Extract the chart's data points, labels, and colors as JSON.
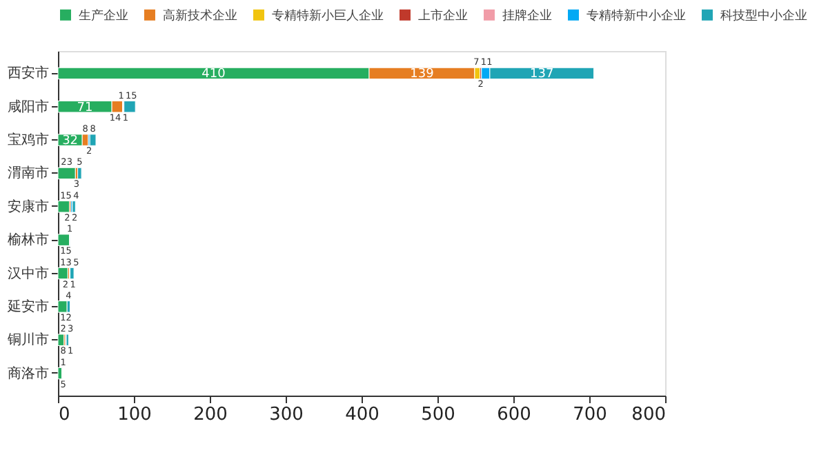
{
  "chart_data": {
    "type": "bar",
    "orientation": "horizontal",
    "stacked": true,
    "data_labels": true,
    "legend": "top",
    "grid": false,
    "categories": [
      "西安市",
      "咸阳市",
      "宝鸡市",
      "渭南市",
      "安康市",
      "榆林市",
      "汉中市",
      "延安市",
      "铜川市",
      "商洛市"
    ],
    "xlim": [
      0,
      800
    ],
    "xticks": [
      0,
      100,
      200,
      300,
      400,
      500,
      600,
      700,
      800
    ],
    "series": [
      {
        "name": "生产企业",
        "color": "#27ae60",
        "values": [
          410,
          71,
          32,
          23,
          15,
          15,
          13,
          12,
          8,
          5
        ]
      },
      {
        "name": "高新技术企业",
        "color": "#e67e22",
        "values": [
          139,
          14,
          8,
          3,
          2,
          null,
          2,
          null,
          2,
          null
        ]
      },
      {
        "name": "专精特新小巨人企业",
        "color": "#f1c40f",
        "values": [
          7,
          1,
          null,
          null,
          null,
          null,
          null,
          null,
          null,
          null
        ]
      },
      {
        "name": "上市企业",
        "color": "#c0392b",
        "values": [
          2,
          null,
          null,
          null,
          null,
          null,
          null,
          null,
          null,
          null
        ]
      },
      {
        "name": "挂牌企业",
        "color": "#f19ca8",
        "values": [
          null,
          null,
          null,
          null,
          null,
          null,
          null,
          null,
          null,
          null
        ]
      },
      {
        "name": "专精特新中小企业",
        "color": "#03a9f4",
        "values": [
          11,
          1,
          2,
          null,
          2,
          null,
          1,
          null,
          1,
          null
        ]
      },
      {
        "name": "科技型中小企业",
        "color": "#20a5b5",
        "values": [
          137,
          15,
          8,
          5,
          4,
          1,
          5,
          4,
          3,
          1
        ]
      }
    ]
  }
}
